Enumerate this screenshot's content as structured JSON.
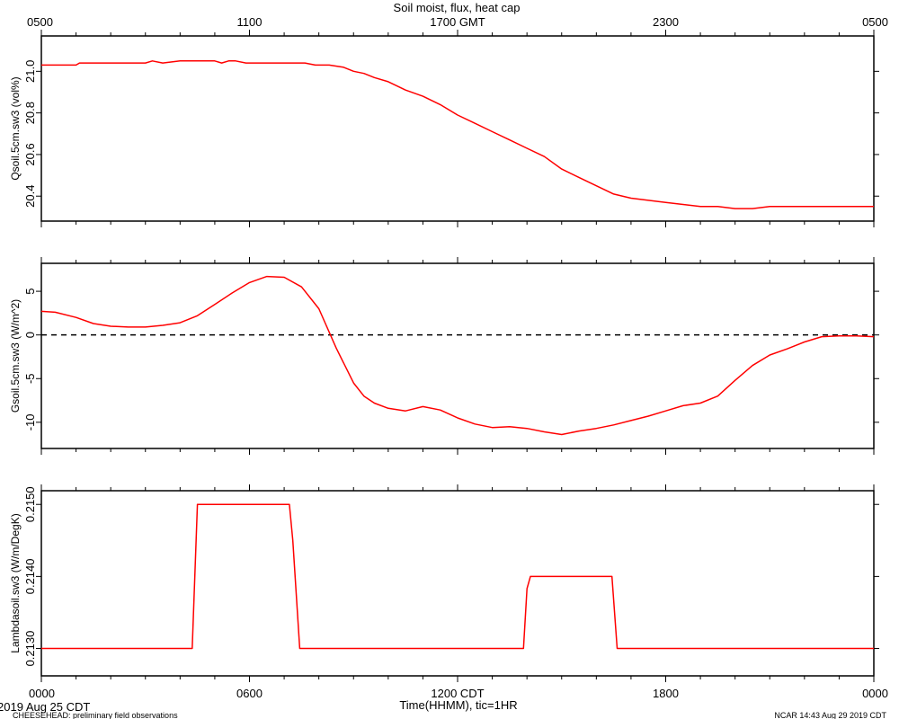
{
  "title": "Soil moist, flux, heat cap",
  "top_axis": {
    "ticks": [
      "0500",
      "1100",
      "1700 GMT",
      "2300",
      "0500"
    ]
  },
  "bottom_axis": {
    "ticks": [
      "0000",
      "0600",
      "1200 CDT",
      "1800",
      "0000"
    ],
    "label": "Time(HHMM), tic=1HR"
  },
  "footer": {
    "date": "2019 Aug 25 CDT",
    "note": "CHEESEHEAD: preliminary field observations",
    "stamp": "NCAR 14:43 Aug 29 2019 CDT"
  },
  "colors": {
    "series": "#ff0000",
    "axis": "#000000",
    "zero_line": "#000000"
  },
  "chart_data": [
    {
      "type": "line",
      "ylabel": "Qsoil.5cm.sw3 (vol%)",
      "xlim": [
        0,
        24
      ],
      "ylim": [
        20.28,
        21.17
      ],
      "yticks": [
        "20.4",
        "20.6",
        "20.8",
        "21.0"
      ],
      "ytick_values": [
        20.4,
        20.6,
        20.8,
        21.0
      ],
      "x": [
        0,
        1,
        1.1,
        1.4,
        3,
        3.2,
        3.5,
        4,
        4.5,
        5,
        5.2,
        5.4,
        5.6,
        5.9,
        6,
        7,
        7.6,
        7.9,
        8.3,
        8.7,
        9,
        9.3,
        9.6,
        10,
        10.5,
        11,
        11.5,
        12,
        12.5,
        13,
        13.5,
        14,
        14.5,
        15,
        15.5,
        16,
        16.5,
        17,
        17.5,
        18,
        18.5,
        19,
        19.5,
        20,
        20.5,
        21,
        21.5,
        22,
        22.5,
        23,
        23.5,
        24
      ],
      "y": [
        21.03,
        21.03,
        21.04,
        21.04,
        21.04,
        21.05,
        21.04,
        21.05,
        21.05,
        21.05,
        21.04,
        21.05,
        21.05,
        21.04,
        21.04,
        21.04,
        21.04,
        21.03,
        21.03,
        21.02,
        21.0,
        20.99,
        20.97,
        20.95,
        20.91,
        20.88,
        20.84,
        20.79,
        20.75,
        20.71,
        20.67,
        20.63,
        20.59,
        20.53,
        20.49,
        20.45,
        20.41,
        20.39,
        20.38,
        20.37,
        20.36,
        20.35,
        20.35,
        20.34,
        20.34,
        20.35,
        20.35,
        20.35,
        20.35,
        20.35,
        20.35,
        20.35
      ]
    },
    {
      "type": "line",
      "ylabel": "Gsoil.5cm.sw3 (W/m^2)",
      "xlim": [
        0,
        24
      ],
      "ylim": [
        -13,
        8.2
      ],
      "yticks": [
        "-10",
        "-5",
        "0",
        "5"
      ],
      "ytick_values": [
        -10,
        -5,
        0,
        5
      ],
      "zero_line": true,
      "x": [
        0,
        0.4,
        1,
        1.5,
        2,
        2.5,
        3,
        3.5,
        4,
        4.5,
        5,
        5.5,
        6,
        6.5,
        7,
        7.5,
        8,
        8.5,
        9,
        9.3,
        9.6,
        10,
        10.5,
        11,
        11.5,
        12,
        12.5,
        13,
        13.5,
        14,
        14.5,
        15,
        15.5,
        16,
        16.5,
        17,
        17.5,
        18,
        18.5,
        19,
        19.5,
        20,
        20.5,
        21,
        21.5,
        22,
        22.5,
        23,
        23.5,
        24
      ],
      "y": [
        2.7,
        2.6,
        2.0,
        1.3,
        1.0,
        0.9,
        0.9,
        1.1,
        1.4,
        2.2,
        3.5,
        4.8,
        6.0,
        6.7,
        6.6,
        5.5,
        3.0,
        -1.5,
        -5.5,
        -7.0,
        -7.8,
        -8.4,
        -8.7,
        -8.2,
        -8.6,
        -9.5,
        -10.2,
        -10.6,
        -10.5,
        -10.7,
        -11.1,
        -11.4,
        -11.0,
        -10.7,
        -10.3,
        -9.8,
        -9.3,
        -8.7,
        -8.1,
        -7.8,
        -7.0,
        -5.2,
        -3.5,
        -2.3,
        -1.6,
        -0.8,
        -0.2,
        -0.1,
        -0.1,
        -0.2
      ]
    },
    {
      "type": "line",
      "ylabel": "Lambdasoil.sw3 (W/m/DegK)",
      "xlim": [
        0,
        24
      ],
      "ylim": [
        0.21262,
        0.21519
      ],
      "yticks": [
        "0.2130",
        "0.2140",
        "0.2150"
      ],
      "ytick_values": [
        0.213,
        0.214,
        0.215
      ],
      "x": [
        0,
        4.35,
        4.5,
        7.15,
        7.25,
        7.45,
        13.9,
        14.0,
        14.1,
        16.45,
        16.6,
        24
      ],
      "y": [
        0.213,
        0.213,
        0.215,
        0.215,
        0.2145,
        0.213,
        0.213,
        0.21383,
        0.214,
        0.214,
        0.213,
        0.213
      ]
    }
  ]
}
